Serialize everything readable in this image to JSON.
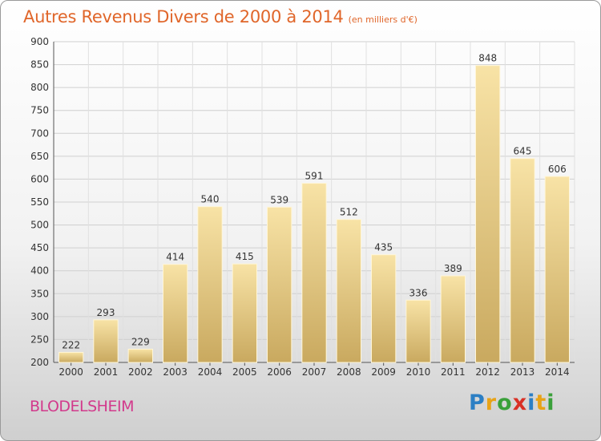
{
  "header": {
    "title": "Autres Revenus Divers de 2000 à 2014",
    "subtitle": "(en milliers d'€)"
  },
  "footer": {
    "commune": "BLODELSHEIM",
    "brand_letters": [
      {
        "char": "P",
        "color": "#2c7fc4"
      },
      {
        "char": "r",
        "color": "#e8a317"
      },
      {
        "char": "o",
        "color": "#3aa03a"
      },
      {
        "char": "x",
        "color": "#d93025"
      },
      {
        "char": "i",
        "color": "#2c7fc4"
      },
      {
        "char": "t",
        "color": "#e8a317"
      },
      {
        "char": "i",
        "color": "#3aa03a"
      }
    ]
  },
  "chart_data": {
    "type": "bar",
    "categories": [
      "2000",
      "2001",
      "2002",
      "2003",
      "2004",
      "2005",
      "2006",
      "2007",
      "2008",
      "2009",
      "2010",
      "2011",
      "2012",
      "2013",
      "2014"
    ],
    "values": [
      222,
      293,
      229,
      414,
      540,
      415,
      539,
      591,
      512,
      435,
      336,
      389,
      848,
      645,
      606
    ],
    "ylim": [
      200,
      900
    ],
    "yticks": [
      200,
      250,
      300,
      350,
      400,
      450,
      500,
      550,
      600,
      650,
      700,
      750,
      800,
      850,
      900
    ],
    "grid": true,
    "bar_color_light": "#f8e3a6",
    "bar_color_dark": "#c9a95f"
  }
}
